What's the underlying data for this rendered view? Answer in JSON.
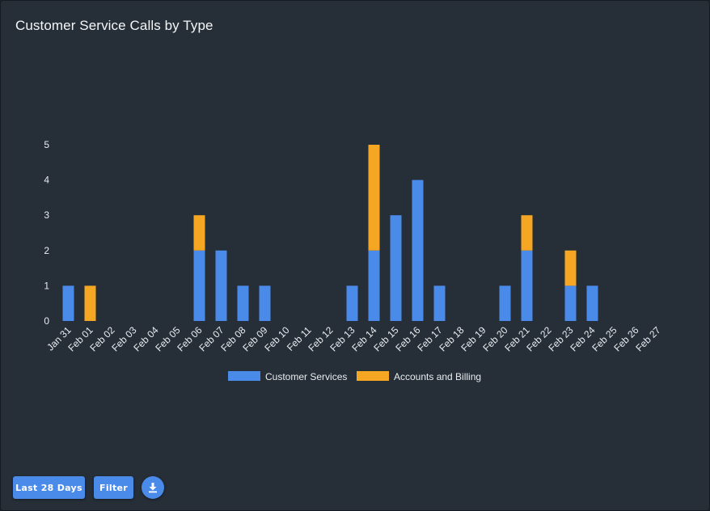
{
  "header": {
    "title": "Customer Service Calls by Type"
  },
  "controls": {
    "range_label": "Last 28 Days",
    "filter_label": "Filter",
    "download_icon": "download-icon"
  },
  "colors": {
    "background": "#262e38",
    "customer_services": "#4a8ae8",
    "accounts_billing": "#f5a623",
    "text": "#e9edf1"
  },
  "chart_data": {
    "type": "bar",
    "stacked": true,
    "title": "Customer Service Calls by Type",
    "xlabel": "",
    "ylabel": "",
    "ylim": [
      0,
      5
    ],
    "yticks": [
      0,
      1,
      2,
      3,
      4,
      5
    ],
    "grid": false,
    "legend_position": "bottom",
    "categories": [
      "Jan 31",
      "Feb 01",
      "Feb 02",
      "Feb 03",
      "Feb 04",
      "Feb 05",
      "Feb 06",
      "Feb 07",
      "Feb 08",
      "Feb 09",
      "Feb 10",
      "Feb 11",
      "Feb 12",
      "Feb 13",
      "Feb 14",
      "Feb 15",
      "Feb 16",
      "Feb 17",
      "Feb 18",
      "Feb 19",
      "Feb 20",
      "Feb 21",
      "Feb 22",
      "Feb 23",
      "Feb 24",
      "Feb 25",
      "Feb 26",
      "Feb 27"
    ],
    "series": [
      {
        "name": "Customer Services",
        "color": "#4a8ae8",
        "values": [
          1,
          0,
          0,
          0,
          0,
          0,
          2,
          2,
          1,
          1,
          0,
          0,
          0,
          1,
          2,
          3,
          4,
          1,
          0,
          0,
          1,
          2,
          0,
          1,
          1,
          0,
          0,
          0
        ]
      },
      {
        "name": "Accounts and Billing",
        "color": "#f5a623",
        "values": [
          0,
          1,
          0,
          0,
          0,
          0,
          1,
          0,
          0,
          0,
          0,
          0,
          0,
          0,
          3,
          0,
          0,
          0,
          0,
          0,
          0,
          1,
          0,
          1,
          0,
          0,
          0,
          0
        ]
      }
    ]
  }
}
